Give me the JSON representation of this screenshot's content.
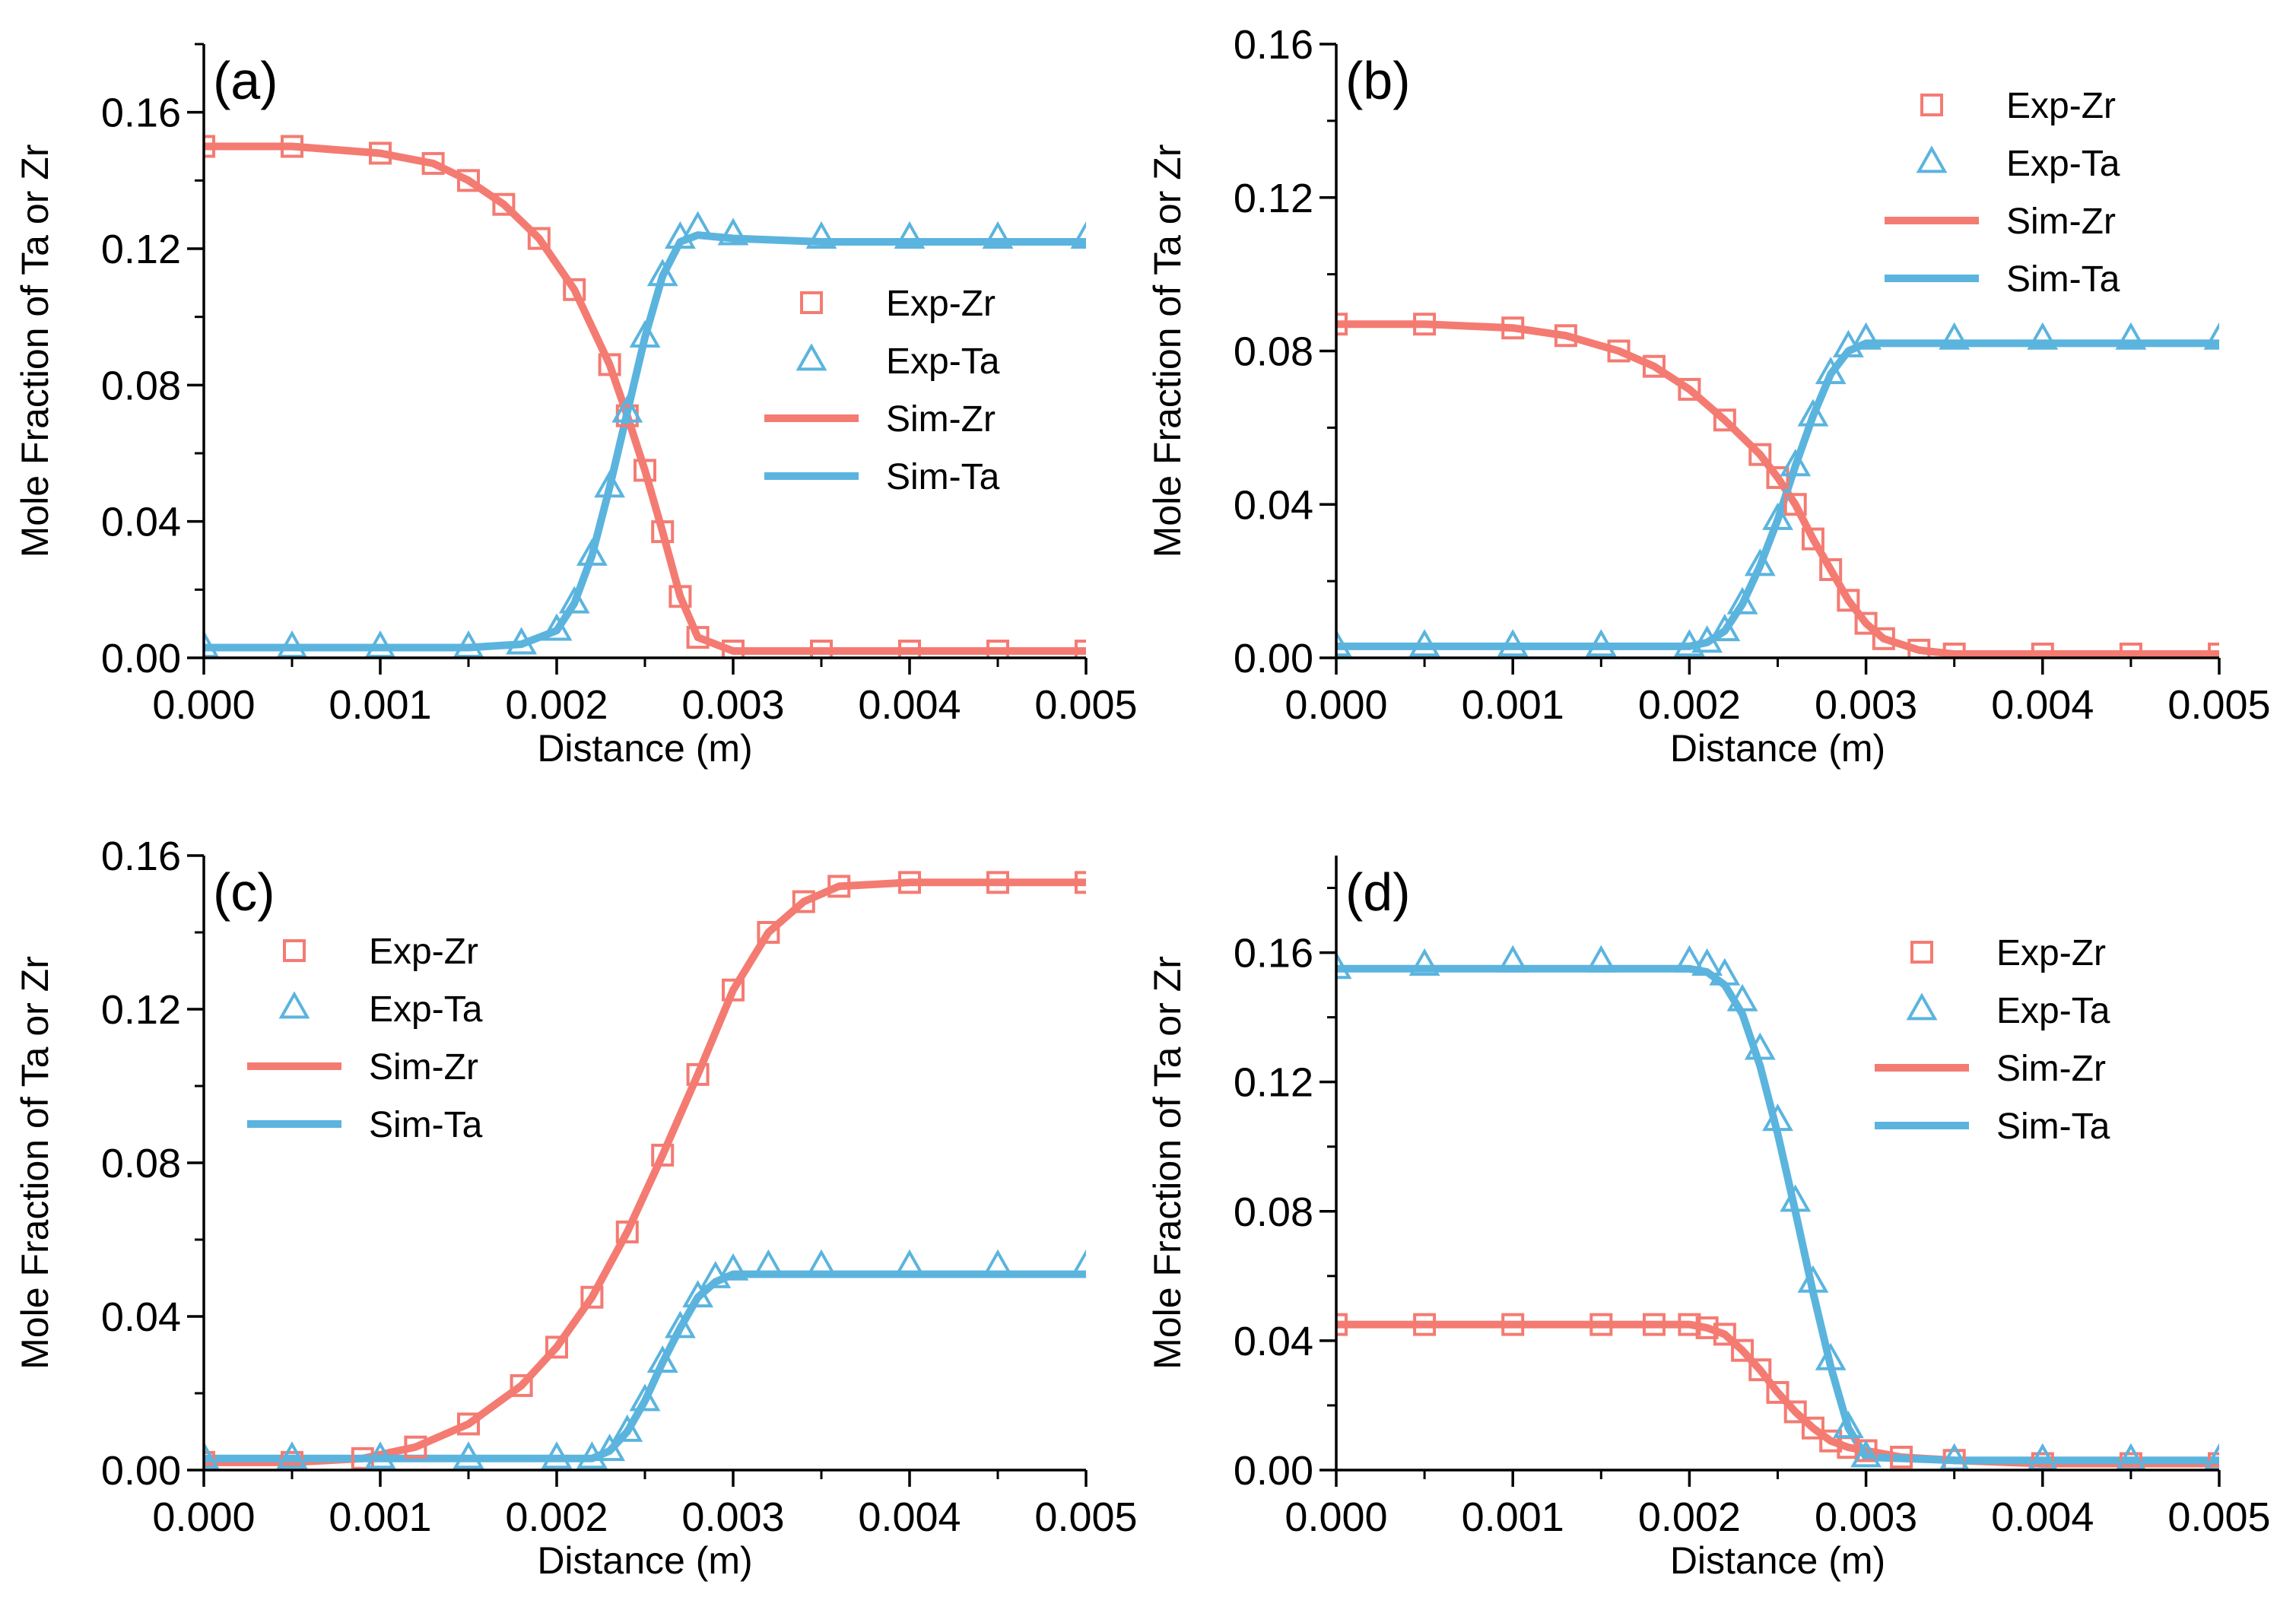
{
  "colors": {
    "zr": "#F47B72",
    "ta": "#5BB4DE",
    "axis": "#000000"
  },
  "legend_entries": [
    {
      "label": "Exp-Zr",
      "marker": "square",
      "series": "zr"
    },
    {
      "label": "Exp-Ta",
      "marker": "triangle",
      "series": "ta"
    },
    {
      "label": "Sim-Zr",
      "marker": "line",
      "series": "zr"
    },
    {
      "label": "Sim-Ta",
      "marker": "line",
      "series": "ta"
    }
  ],
  "chart_data": [
    {
      "type": "scatter",
      "panel_label": "(a)",
      "xlabel": "Distance (m)",
      "ylabel": "Mole Fraction of Ta or Zr",
      "xlim": [
        0,
        0.005
      ],
      "ylim": [
        0,
        0.18
      ],
      "xticks": [
        "0.000",
        "0.001",
        "0.002",
        "0.003",
        "0.004",
        "0.005"
      ],
      "yticks": [
        "0.00",
        "0.04",
        "0.08",
        "0.12",
        "0.16"
      ],
      "legend": "right",
      "series": [
        {
          "name": "Exp-Zr",
          "color": "zr",
          "marker": "square",
          "x": [
            0,
            0.0005,
            0.001,
            0.0013,
            0.0015,
            0.0017,
            0.0019,
            0.0021,
            0.0023,
            0.0024,
            0.0025,
            0.0026,
            0.0027,
            0.0028,
            0.003,
            0.0035,
            0.004,
            0.0045,
            0.005
          ],
          "y": [
            0.15,
            0.15,
            0.148,
            0.145,
            0.14,
            0.133,
            0.123,
            0.108,
            0.086,
            0.071,
            0.055,
            0.037,
            0.018,
            0.006,
            0.002,
            0.002,
            0.002,
            0.002,
            0.002
          ]
        },
        {
          "name": "Exp-Ta",
          "color": "ta",
          "marker": "triangle",
          "x": [
            0,
            0.0005,
            0.001,
            0.0015,
            0.0018,
            0.002,
            0.0021,
            0.0022,
            0.0023,
            0.0024,
            0.0025,
            0.0026,
            0.0027,
            0.0028,
            0.003,
            0.0035,
            0.004,
            0.0045,
            0.005
          ],
          "y": [
            0.003,
            0.003,
            0.003,
            0.003,
            0.004,
            0.008,
            0.016,
            0.03,
            0.05,
            0.072,
            0.094,
            0.112,
            0.123,
            0.126,
            0.124,
            0.123,
            0.123,
            0.123,
            0.123
          ]
        },
        {
          "name": "Sim-Zr",
          "color": "zr",
          "marker": "line",
          "x": [
            0,
            0.0005,
            0.001,
            0.0013,
            0.0015,
            0.0017,
            0.0019,
            0.0021,
            0.0023,
            0.0024,
            0.0025,
            0.0026,
            0.0027,
            0.0028,
            0.003,
            0.0035,
            0.004,
            0.0045,
            0.005
          ],
          "y": [
            0.15,
            0.15,
            0.148,
            0.145,
            0.14,
            0.133,
            0.123,
            0.108,
            0.086,
            0.071,
            0.055,
            0.037,
            0.018,
            0.006,
            0.002,
            0.002,
            0.002,
            0.002,
            0.002
          ]
        },
        {
          "name": "Sim-Ta",
          "color": "ta",
          "marker": "line",
          "x": [
            0,
            0.0005,
            0.001,
            0.0015,
            0.0018,
            0.002,
            0.0021,
            0.0022,
            0.0023,
            0.0024,
            0.0025,
            0.0026,
            0.0027,
            0.0028,
            0.003,
            0.0035,
            0.004,
            0.0045,
            0.005
          ],
          "y": [
            0.003,
            0.003,
            0.003,
            0.003,
            0.004,
            0.008,
            0.016,
            0.03,
            0.05,
            0.072,
            0.094,
            0.112,
            0.122,
            0.124,
            0.123,
            0.122,
            0.122,
            0.122,
            0.122
          ]
        }
      ]
    },
    {
      "type": "scatter",
      "panel_label": "(b)",
      "xlabel": "Distance (m)",
      "ylabel": "Mole Fraction of Ta or Zr",
      "xlim": [
        0,
        0.005
      ],
      "ylim": [
        0,
        0.16
      ],
      "xticks": [
        "0.000",
        "0.001",
        "0.002",
        "0.003",
        "0.004",
        "0.005"
      ],
      "yticks": [
        "0.00",
        "0.04",
        "0.08",
        "0.12",
        "0.16"
      ],
      "legend": "top-right",
      "series": [
        {
          "name": "Exp-Zr",
          "color": "zr",
          "marker": "square",
          "x": [
            0,
            0.0005,
            0.001,
            0.0013,
            0.0016,
            0.0018,
            0.002,
            0.0022,
            0.0024,
            0.0025,
            0.0026,
            0.0027,
            0.0028,
            0.0029,
            0.003,
            0.0031,
            0.0033,
            0.0035,
            0.004,
            0.0045,
            0.005
          ],
          "y": [
            0.087,
            0.087,
            0.086,
            0.084,
            0.08,
            0.076,
            0.07,
            0.062,
            0.053,
            0.047,
            0.04,
            0.031,
            0.023,
            0.015,
            0.009,
            0.005,
            0.002,
            0.001,
            0.001,
            0.001,
            0.001
          ]
        },
        {
          "name": "Exp-Ta",
          "color": "ta",
          "marker": "triangle",
          "x": [
            0,
            0.0005,
            0.001,
            0.0015,
            0.002,
            0.0021,
            0.0022,
            0.0023,
            0.0024,
            0.0025,
            0.0026,
            0.0027,
            0.0028,
            0.0029,
            0.003,
            0.0035,
            0.004,
            0.0045,
            0.005
          ],
          "y": [
            0.003,
            0.003,
            0.003,
            0.003,
            0.003,
            0.004,
            0.007,
            0.014,
            0.024,
            0.036,
            0.05,
            0.063,
            0.074,
            0.081,
            0.083,
            0.083,
            0.083,
            0.083,
            0.083
          ]
        },
        {
          "name": "Sim-Zr",
          "color": "zr",
          "marker": "line",
          "x": [
            0,
            0.0005,
            0.001,
            0.0013,
            0.0016,
            0.0018,
            0.002,
            0.0022,
            0.0024,
            0.0025,
            0.0026,
            0.0027,
            0.0028,
            0.0029,
            0.003,
            0.0031,
            0.0033,
            0.0035,
            0.004,
            0.0045,
            0.005
          ],
          "y": [
            0.087,
            0.087,
            0.086,
            0.084,
            0.08,
            0.076,
            0.07,
            0.062,
            0.053,
            0.047,
            0.04,
            0.031,
            0.023,
            0.015,
            0.009,
            0.005,
            0.002,
            0.001,
            0.001,
            0.001,
            0.001
          ]
        },
        {
          "name": "Sim-Ta",
          "color": "ta",
          "marker": "line",
          "x": [
            0,
            0.0005,
            0.001,
            0.0015,
            0.002,
            0.0021,
            0.0022,
            0.0023,
            0.0024,
            0.0025,
            0.0026,
            0.0027,
            0.0028,
            0.0029,
            0.003,
            0.0035,
            0.004,
            0.0045,
            0.005
          ],
          "y": [
            0.003,
            0.003,
            0.003,
            0.003,
            0.003,
            0.004,
            0.007,
            0.014,
            0.024,
            0.036,
            0.05,
            0.063,
            0.074,
            0.08,
            0.082,
            0.082,
            0.082,
            0.082,
            0.082
          ]
        }
      ]
    },
    {
      "type": "scatter",
      "panel_label": "(c)",
      "xlabel": "Distance (m)",
      "ylabel": "Mole Fraction of Ta or Zr",
      "xlim": [
        0,
        0.005
      ],
      "ylim": [
        0,
        0.16
      ],
      "xticks": [
        "0.000",
        "0.001",
        "0.002",
        "0.003",
        "0.004",
        "0.005"
      ],
      "yticks": [
        "0.00",
        "0.04",
        "0.08",
        "0.12",
        "0.16"
      ],
      "legend": "top-left",
      "series": [
        {
          "name": "Exp-Zr",
          "color": "zr",
          "marker": "square",
          "x": [
            0,
            0.0005,
            0.0009,
            0.0012,
            0.0015,
            0.0018,
            0.002,
            0.0022,
            0.0024,
            0.0026,
            0.0028,
            0.003,
            0.0032,
            0.0034,
            0.0036,
            0.004,
            0.0045,
            0.005
          ],
          "y": [
            0.002,
            0.002,
            0.003,
            0.006,
            0.012,
            0.022,
            0.032,
            0.045,
            0.062,
            0.082,
            0.103,
            0.125,
            0.14,
            0.148,
            0.152,
            0.153,
            0.153,
            0.153
          ]
        },
        {
          "name": "Exp-Ta",
          "color": "ta",
          "marker": "triangle",
          "x": [
            0,
            0.0005,
            0.001,
            0.0015,
            0.002,
            0.0022,
            0.0023,
            0.0024,
            0.0025,
            0.0026,
            0.0027,
            0.0028,
            0.0029,
            0.003,
            0.0032,
            0.0035,
            0.004,
            0.0045,
            0.005
          ],
          "y": [
            0.003,
            0.003,
            0.003,
            0.003,
            0.003,
            0.003,
            0.005,
            0.01,
            0.018,
            0.028,
            0.037,
            0.045,
            0.05,
            0.052,
            0.053,
            0.053,
            0.053,
            0.053,
            0.053
          ]
        },
        {
          "name": "Sim-Zr",
          "color": "zr",
          "marker": "line",
          "x": [
            0,
            0.0005,
            0.0009,
            0.0012,
            0.0015,
            0.0018,
            0.002,
            0.0022,
            0.0024,
            0.0026,
            0.0028,
            0.003,
            0.0032,
            0.0034,
            0.0036,
            0.004,
            0.0045,
            0.005
          ],
          "y": [
            0.002,
            0.002,
            0.003,
            0.006,
            0.012,
            0.022,
            0.032,
            0.045,
            0.062,
            0.082,
            0.103,
            0.125,
            0.14,
            0.148,
            0.152,
            0.153,
            0.153,
            0.153
          ]
        },
        {
          "name": "Sim-Ta",
          "color": "ta",
          "marker": "line",
          "x": [
            0,
            0.0005,
            0.001,
            0.0015,
            0.002,
            0.0022,
            0.0023,
            0.0024,
            0.0025,
            0.0026,
            0.0027,
            0.0028,
            0.0029,
            0.003,
            0.0032,
            0.0035,
            0.004,
            0.0045,
            0.005
          ],
          "y": [
            0.003,
            0.003,
            0.003,
            0.003,
            0.003,
            0.003,
            0.005,
            0.01,
            0.018,
            0.028,
            0.037,
            0.045,
            0.049,
            0.051,
            0.051,
            0.051,
            0.051,
            0.051,
            0.051
          ]
        }
      ]
    },
    {
      "type": "scatter",
      "panel_label": "(d)",
      "xlabel": "Distance (m)",
      "ylabel": "Mole Fraction of Ta or Zr",
      "xlim": [
        0,
        0.005
      ],
      "ylim": [
        0,
        0.19
      ],
      "xticks": [
        "0.000",
        "0.001",
        "0.002",
        "0.003",
        "0.004",
        "0.005"
      ],
      "yticks": [
        "0.00",
        "0.04",
        "0.08",
        "0.12",
        "0.16"
      ],
      "legend": "top-right",
      "series": [
        {
          "name": "Exp-Zr",
          "color": "zr",
          "marker": "square",
          "x": [
            0,
            0.0005,
            0.001,
            0.0015,
            0.0018,
            0.002,
            0.0021,
            0.0022,
            0.0023,
            0.0024,
            0.0025,
            0.0026,
            0.0027,
            0.0028,
            0.0029,
            0.003,
            0.0032,
            0.0035,
            0.004,
            0.0045,
            0.005
          ],
          "y": [
            0.045,
            0.045,
            0.045,
            0.045,
            0.045,
            0.045,
            0.044,
            0.042,
            0.037,
            0.031,
            0.024,
            0.018,
            0.013,
            0.009,
            0.007,
            0.006,
            0.004,
            0.003,
            0.002,
            0.002,
            0.002
          ]
        },
        {
          "name": "Exp-Ta",
          "color": "ta",
          "marker": "triangle",
          "x": [
            0,
            0.0005,
            0.001,
            0.0015,
            0.002,
            0.0021,
            0.0022,
            0.0023,
            0.0024,
            0.0025,
            0.0026,
            0.0027,
            0.0028,
            0.0029,
            0.003,
            0.0035,
            0.004,
            0.0045,
            0.005
          ],
          "y": [
            0.155,
            0.156,
            0.157,
            0.157,
            0.157,
            0.156,
            0.153,
            0.145,
            0.13,
            0.108,
            0.083,
            0.058,
            0.034,
            0.013,
            0.004,
            0.003,
            0.003,
            0.003,
            0.003
          ]
        },
        {
          "name": "Sim-Zr",
          "color": "zr",
          "marker": "line",
          "x": [
            0,
            0.0005,
            0.001,
            0.0015,
            0.0018,
            0.002,
            0.0021,
            0.0022,
            0.0023,
            0.0024,
            0.0025,
            0.0026,
            0.0027,
            0.0028,
            0.0029,
            0.003,
            0.0032,
            0.0035,
            0.004,
            0.0045,
            0.005
          ],
          "y": [
            0.045,
            0.045,
            0.045,
            0.045,
            0.045,
            0.045,
            0.044,
            0.042,
            0.037,
            0.031,
            0.024,
            0.018,
            0.013,
            0.009,
            0.007,
            0.006,
            0.004,
            0.003,
            0.002,
            0.002,
            0.002
          ]
        },
        {
          "name": "Sim-Ta",
          "color": "ta",
          "marker": "line",
          "x": [
            0,
            0.0005,
            0.001,
            0.0015,
            0.002,
            0.0021,
            0.0022,
            0.0023,
            0.0024,
            0.0025,
            0.0026,
            0.0027,
            0.0028,
            0.0029,
            0.003,
            0.0035,
            0.004,
            0.0045,
            0.005
          ],
          "y": [
            0.155,
            0.155,
            0.155,
            0.155,
            0.155,
            0.154,
            0.15,
            0.141,
            0.125,
            0.104,
            0.08,
            0.055,
            0.032,
            0.013,
            0.004,
            0.003,
            0.003,
            0.003,
            0.003
          ]
        }
      ]
    }
  ]
}
